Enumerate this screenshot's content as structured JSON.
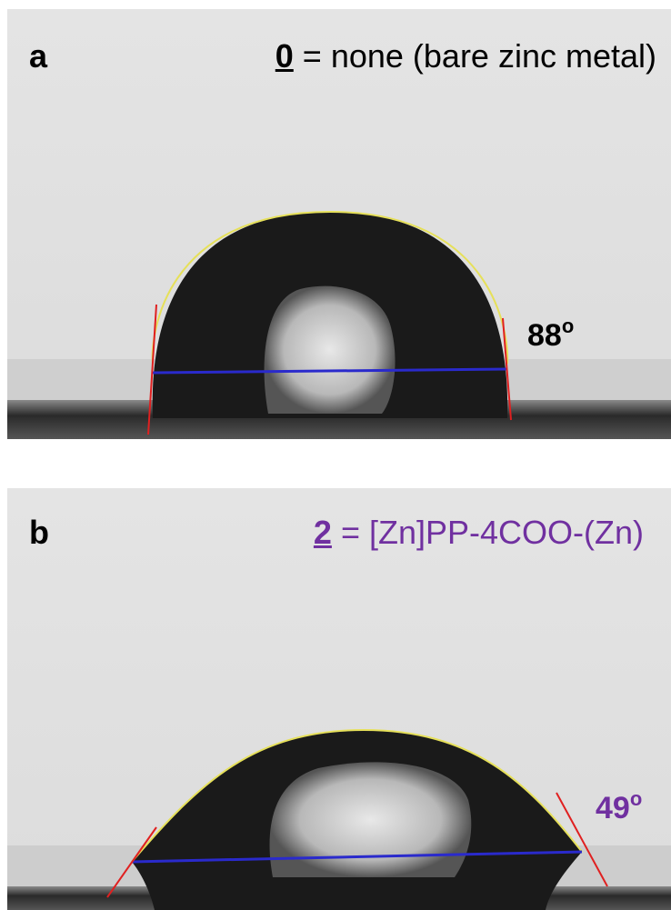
{
  "panels": [
    {
      "label": "a",
      "compound_number": "0",
      "compound_name": "= none (bare zinc metal)",
      "angle": "88",
      "angle_unit": "o"
    },
    {
      "label": "b",
      "compound_number": "2",
      "compound_name": "= [Zn]PP-4COO-(Zn)",
      "angle": "49",
      "angle_unit": "o"
    }
  ]
}
